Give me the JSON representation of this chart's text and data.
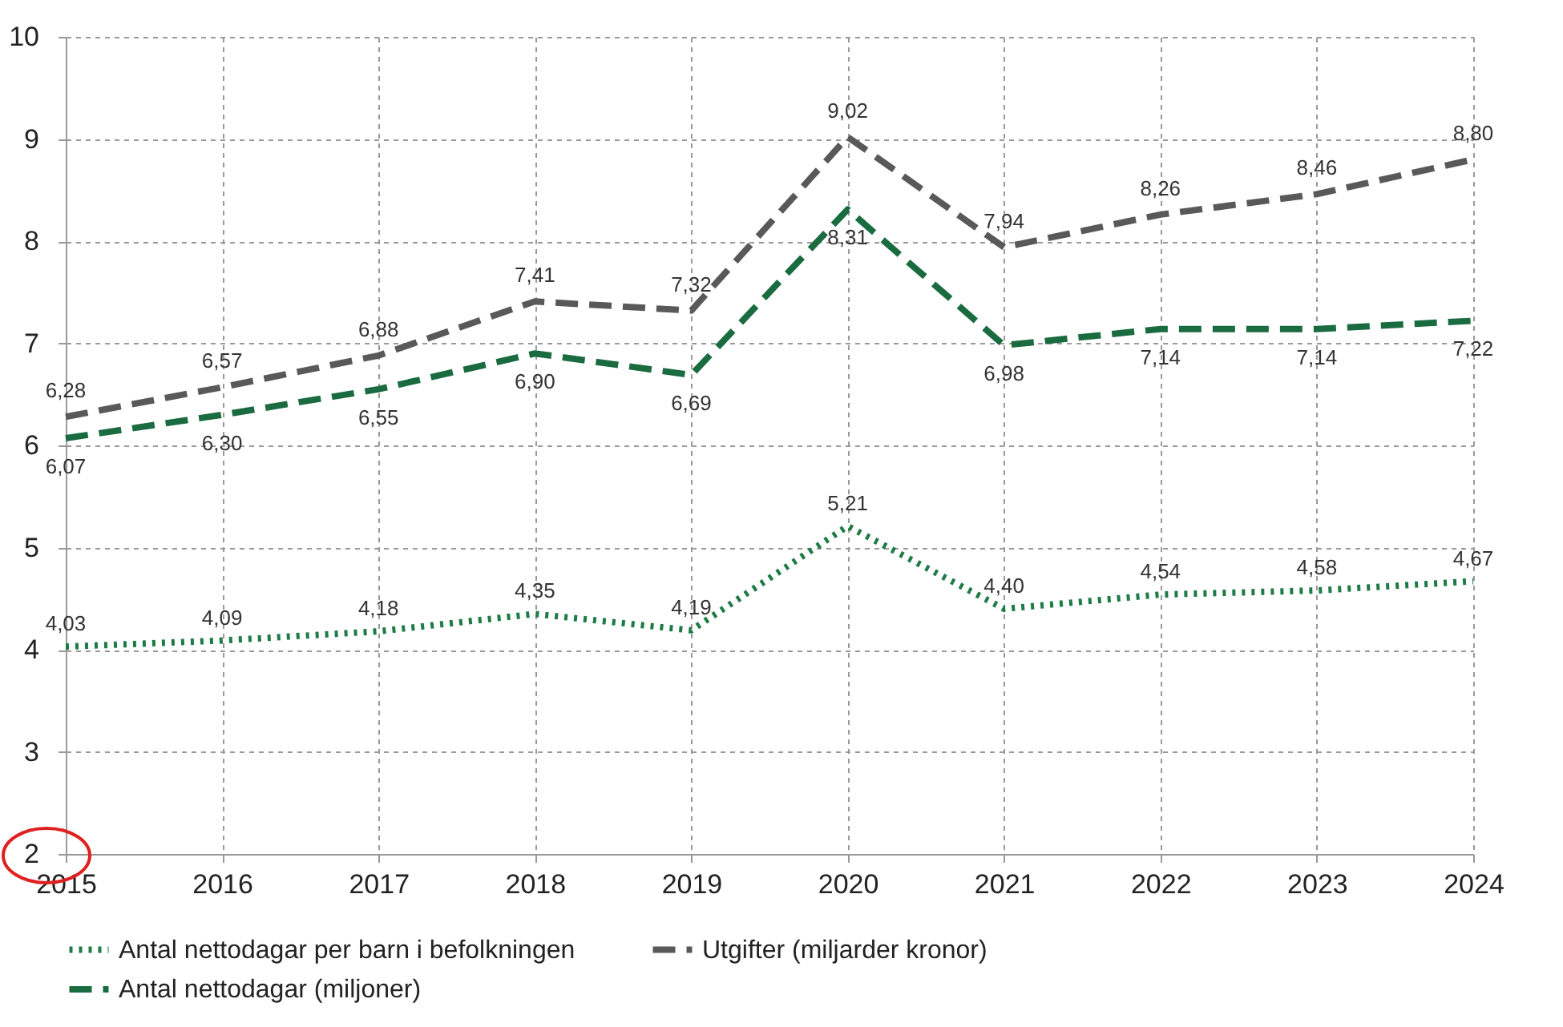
{
  "chart_data": {
    "type": "line",
    "categories": [
      "2015",
      "2016",
      "2017",
      "2018",
      "2019",
      "2020",
      "2021",
      "2022",
      "2023",
      "2024"
    ],
    "series": [
      {
        "name": "Antal nettodagar per barn i befolkningen",
        "color": "#1e7b45",
        "line_style": "dotted",
        "values": [
          4.03,
          4.09,
          4.18,
          4.35,
          4.19,
          5.21,
          4.4,
          4.54,
          4.58,
          4.67
        ],
        "value_labels": [
          "4,03",
          "4,09",
          "4,18",
          "4,35",
          "4,19",
          "5,21",
          "4,40",
          "4,54",
          "4,58",
          "4,67"
        ]
      },
      {
        "name": "Utgifter (miljarder kronor)",
        "color": "#595959",
        "line_style": "dashed",
        "values": [
          6.28,
          6.57,
          6.88,
          7.41,
          7.32,
          9.02,
          7.94,
          8.26,
          8.46,
          8.8
        ],
        "value_labels": [
          "6,28",
          "6,57",
          "6,88",
          "7,41",
          "7,32",
          "9,02",
          "7,94",
          "8,26",
          "8,46",
          "8,80"
        ]
      },
      {
        "name": "Antal nettodagar (miljoner)",
        "color": "#1a6b40",
        "line_style": "dashed",
        "values": [
          6.07,
          6.3,
          6.55,
          6.9,
          6.69,
          8.31,
          6.98,
          7.14,
          7.14,
          7.22
        ],
        "value_labels": [
          "6,07",
          "6,30",
          "6,55",
          "6,90",
          "6,69",
          "8,31",
          "6,98",
          "7,14",
          "7,14",
          "7,22"
        ]
      }
    ],
    "ylim": [
      2,
      10
    ],
    "yticks": [
      2,
      3,
      4,
      5,
      6,
      7,
      8,
      9,
      10
    ],
    "grid": true,
    "legend": "bottom",
    "marker": "none"
  }
}
